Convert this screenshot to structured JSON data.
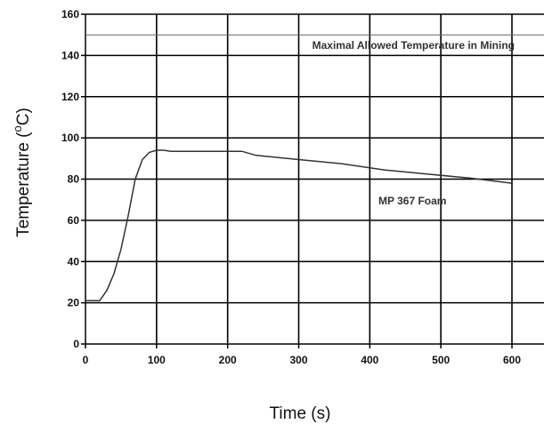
{
  "chart_data": {
    "type": "line",
    "title": "",
    "xlabel": "Time (s)",
    "ylabel_main": "Temperature (",
    "ylabel_sup": "o",
    "ylabel_tail": "C)",
    "xlim": [
      0,
      640
    ],
    "ylim": [
      0,
      160
    ],
    "xticks": [
      0,
      100,
      200,
      300,
      400,
      500,
      600
    ],
    "yticks": [
      0,
      20,
      40,
      60,
      80,
      100,
      120,
      140,
      160
    ],
    "grid": true,
    "reference_line": {
      "y": 150,
      "label": "Maximal Allowed Temperature in Mining"
    },
    "series": [
      {
        "name": "MP 367 Foam",
        "color": "#333333",
        "x": [
          0,
          20,
          30,
          40,
          50,
          60,
          70,
          80,
          90,
          100,
          110,
          120,
          150,
          200,
          220,
          240,
          300,
          360,
          420,
          480,
          540,
          600
        ],
        "y": [
          21,
          21,
          26,
          34,
          46,
          62,
          80,
          89.5,
          93,
          94,
          94,
          93.5,
          93.5,
          93.5,
          93.5,
          91.5,
          89.5,
          87.5,
          84.5,
          82.5,
          80.5,
          78
        ]
      }
    ]
  }
}
